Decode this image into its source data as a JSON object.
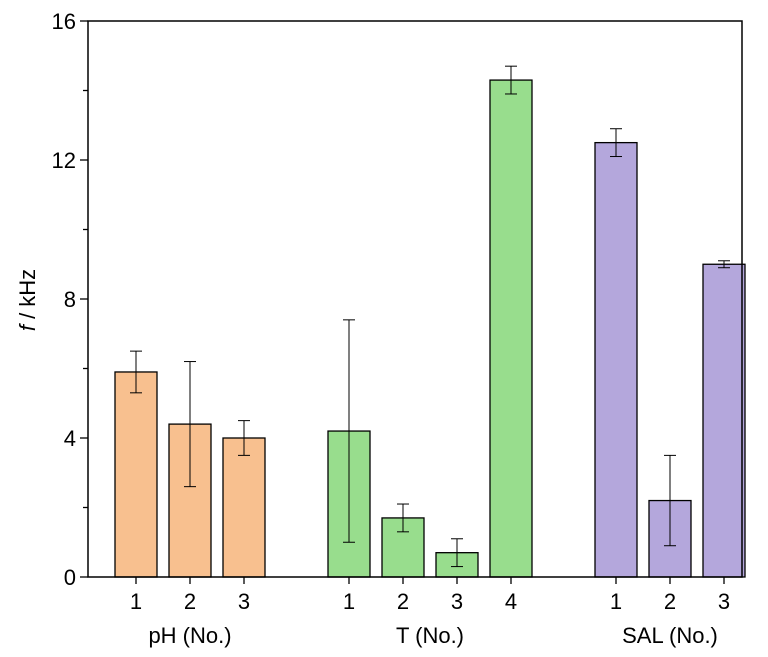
{
  "chart_data": {
    "type": "bar",
    "ylabel_italic": "f",
    "ylabel_rest": " / kHz",
    "ylim": [
      0,
      16
    ],
    "yticks": [
      0,
      4,
      8,
      12,
      16
    ],
    "grid": false,
    "groups": [
      {
        "label": "pH (No.)",
        "color": "#f8c08f",
        "bars": [
          {
            "category": "1",
            "value": 5.9,
            "err_low": 5.3,
            "err_high": 6.5
          },
          {
            "category": "2",
            "value": 4.4,
            "err_low": 2.6,
            "err_high": 6.2
          },
          {
            "category": "3",
            "value": 4.0,
            "err_low": 3.5,
            "err_high": 4.5
          }
        ]
      },
      {
        "label": "T (No.)",
        "color": "#98dd8d",
        "bars": [
          {
            "category": "1",
            "value": 4.2,
            "err_low": 1.0,
            "err_high": 7.4
          },
          {
            "category": "2",
            "value": 1.7,
            "err_low": 1.3,
            "err_high": 2.1
          },
          {
            "category": "3",
            "value": 0.7,
            "err_low": 0.3,
            "err_high": 1.1
          },
          {
            "category": "4",
            "value": 14.3,
            "err_low": 13.9,
            "err_high": 14.7
          }
        ]
      },
      {
        "label": "SAL (No.)",
        "color": "#b4a7dc",
        "bars": [
          {
            "category": "1",
            "value": 12.5,
            "err_low": 12.1,
            "err_high": 12.9
          },
          {
            "category": "2",
            "value": 2.2,
            "err_low": 0.9,
            "err_high": 3.5
          },
          {
            "category": "3",
            "value": 9.0,
            "err_low": 8.9,
            "err_high": 9.1
          }
        ]
      }
    ]
  }
}
